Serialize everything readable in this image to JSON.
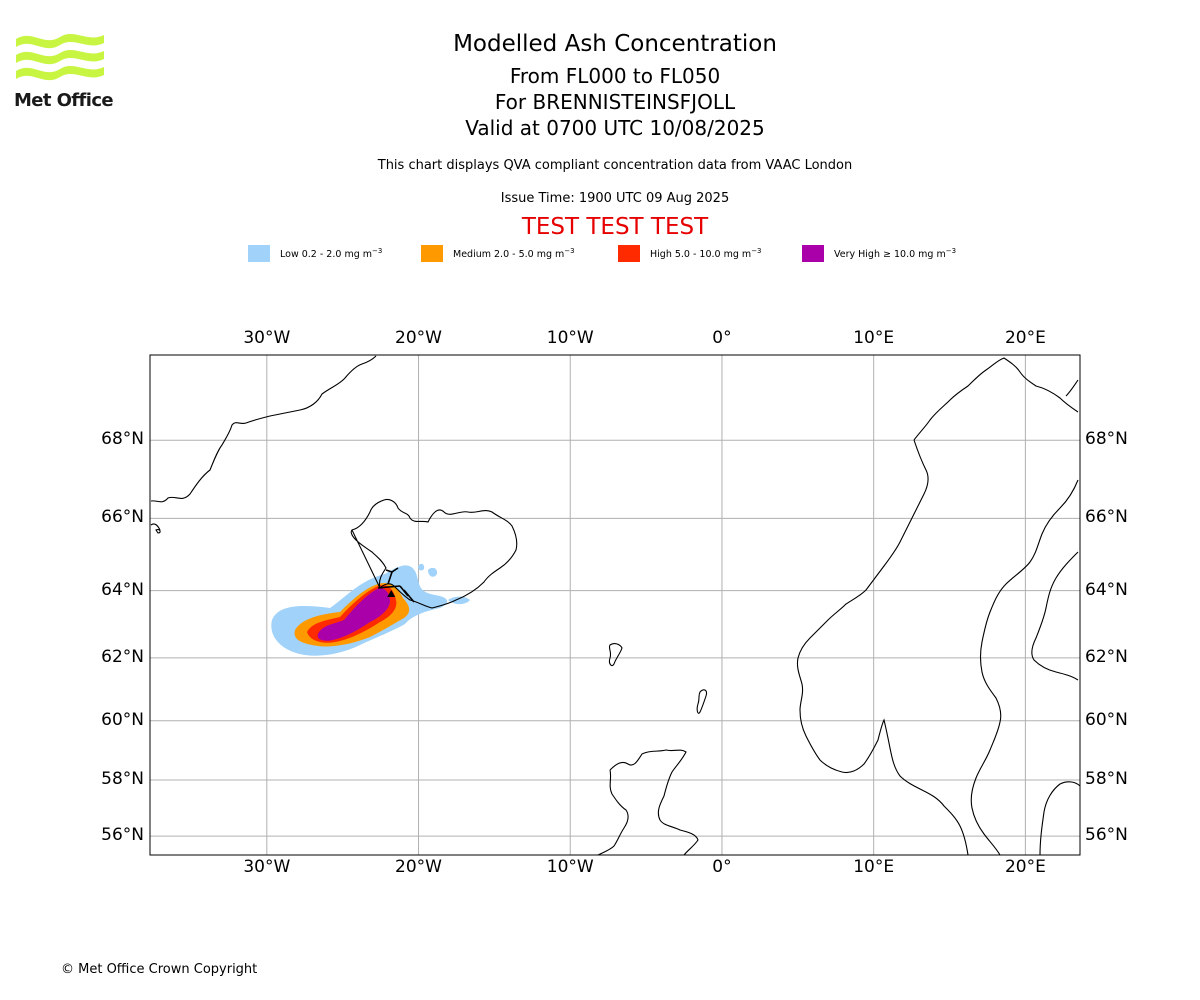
{
  "branding": {
    "logo_text": "Met Office",
    "logo_color": "#c8f542"
  },
  "header": {
    "title": "Modelled Ash Concentration",
    "flight_levels": "From FL000 to FL050",
    "volcano": "For BRENNISTEINSFJOLL",
    "valid_time": "Valid at 0700 UTC 10/08/2025",
    "compliance_note": "This chart displays QVA compliant concentration data from VAAC London",
    "issue_time": "Issue Time: 1900 UTC 09 Aug 2025",
    "test_banner": "TEST TEST TEST",
    "test_banner_color": "#e60000"
  },
  "legend": {
    "unit_suffix": "mg m",
    "unit_exponent": "−3",
    "items": [
      {
        "label": "Low 0.2 - 2.0",
        "color": "#a0d2fa"
      },
      {
        "label": "Medium 2.0 - 5.0",
        "color": "#ff9900"
      },
      {
        "label": "High 5.0 - 10.0",
        "color": "#ff2a00"
      },
      {
        "label": "Very High  ≥  10.0",
        "color": "#aa00aa"
      }
    ]
  },
  "map": {
    "lon_range": [
      -37.7,
      23.6
    ],
    "lat_range": [
      55.3,
      70.0
    ],
    "gridlines": true,
    "lon_ticks": [
      {
        "value": -30,
        "label": "30°W"
      },
      {
        "value": -20,
        "label": "20°W"
      },
      {
        "value": -10,
        "label": "10°W"
      },
      {
        "value": 0,
        "label": "0°"
      },
      {
        "value": 10,
        "label": "10°E"
      },
      {
        "value": 20,
        "label": "20°E"
      }
    ],
    "lat_ticks": [
      {
        "value": 68,
        "label": "68°N"
      },
      {
        "value": 66,
        "label": "66°N"
      },
      {
        "value": 64,
        "label": "64°N"
      },
      {
        "value": 62,
        "label": "62°N"
      },
      {
        "value": 60,
        "label": "60°N"
      },
      {
        "value": 58,
        "label": "58°N"
      },
      {
        "value": 56,
        "label": "56°N"
      }
    ],
    "volcano_marker": {
      "lon": -21.8,
      "lat": 63.9
    }
  },
  "footer": {
    "copyright": "© Met Office Crown Copyright"
  }
}
